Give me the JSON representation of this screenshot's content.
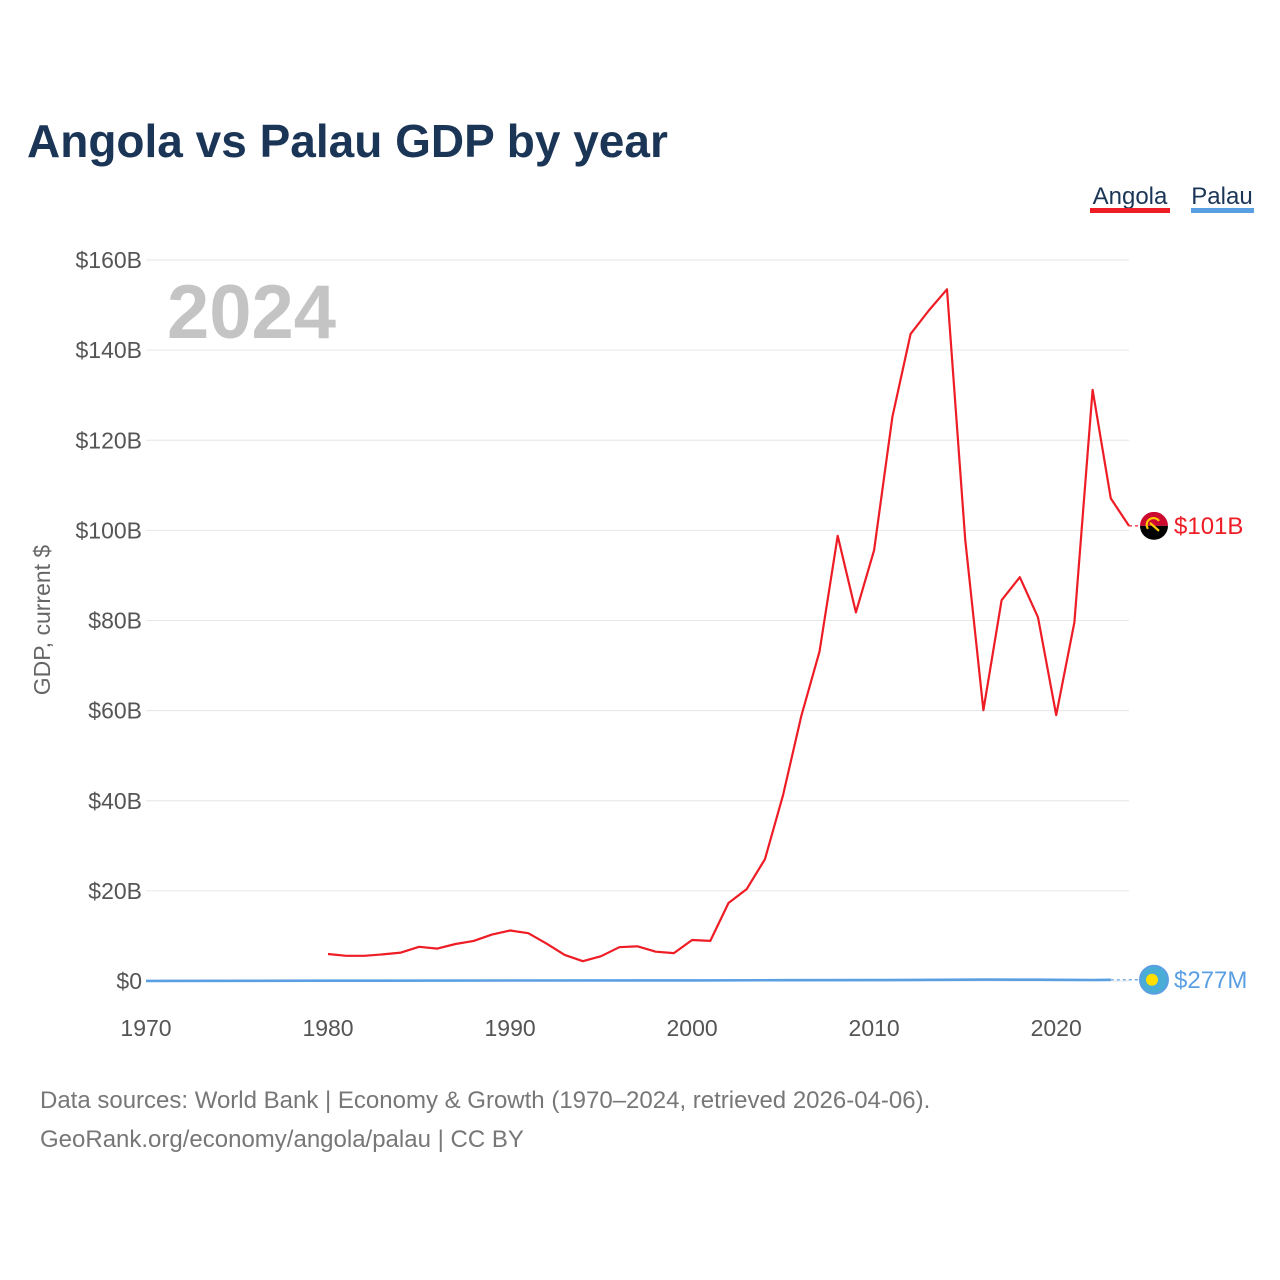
{
  "chart_data": {
    "type": "line",
    "title": "Angola vs Palau GDP by year",
    "ylabel": "GDP, current $",
    "xlabel": "",
    "year_watermark": "2024",
    "xlim": [
      1970,
      2024
    ],
    "ylim": [
      0,
      160
    ],
    "x_ticks": [
      1970,
      1980,
      1990,
      2000,
      2010,
      2020
    ],
    "x_tick_labels": [
      "1970",
      "1980",
      "1990",
      "2000",
      "2010",
      "2020"
    ],
    "y_ticks": [
      0,
      20,
      40,
      60,
      80,
      100,
      120,
      140,
      160
    ],
    "y_tick_labels": [
      "$0",
      "$20B",
      "$40B",
      "$60B",
      "$80B",
      "$100B",
      "$120B",
      "$140B",
      "$160B"
    ],
    "legend": [
      "Angola",
      "Palau"
    ],
    "legend_position": "top-right",
    "series": [
      {
        "name": "Angola",
        "color": "#ee1c25",
        "end_label": "$101B",
        "end_value": 101,
        "flag": "angola-flag",
        "x": [
          1980,
          1981,
          1982,
          1983,
          1984,
          1985,
          1986,
          1987,
          1988,
          1989,
          1990,
          1991,
          1992,
          1993,
          1994,
          1995,
          1996,
          1997,
          1998,
          1999,
          2000,
          2001,
          2002,
          2003,
          2004,
          2005,
          2006,
          2007,
          2008,
          2009,
          2010,
          2011,
          2012,
          2013,
          2014,
          2015,
          2016,
          2017,
          2018,
          2019,
          2020,
          2021,
          2022,
          2023,
          2024
        ],
        "values": [
          6.0,
          5.6,
          5.6,
          5.9,
          6.3,
          7.6,
          7.2,
          8.2,
          8.9,
          10.3,
          11.2,
          10.6,
          8.3,
          5.8,
          4.4,
          5.5,
          7.5,
          7.7,
          6.5,
          6.2,
          9.1,
          8.9,
          17.3,
          20.4,
          27.0,
          41.3,
          58.8,
          73.1,
          98.8,
          81.8,
          95.6,
          125.2,
          143.6,
          148.8,
          153.5,
          98.0,
          60.1,
          84.5,
          89.6,
          80.7,
          59.0,
          79.6,
          131.2,
          107.1,
          101.0
        ]
      },
      {
        "name": "Palau",
        "color": "#5b9fe3",
        "end_label": "$277M",
        "end_value": 0.277,
        "flag": "palau-flag",
        "x": [
          1970,
          1980,
          1990,
          2000,
          2005,
          2010,
          2015,
          2016,
          2019,
          2020,
          2022,
          2023
        ],
        "values": [
          0.03,
          0.06,
          0.1,
          0.14,
          0.18,
          0.2,
          0.29,
          0.31,
          0.28,
          0.26,
          0.23,
          0.26
        ]
      }
    ]
  },
  "footer": {
    "sources": "Data sources: World Bank | Economy & Growth (1970–2024, retrieved 2026-04-06).",
    "credit": "GeoRank.org/economy/angola/palau | CC BY"
  }
}
